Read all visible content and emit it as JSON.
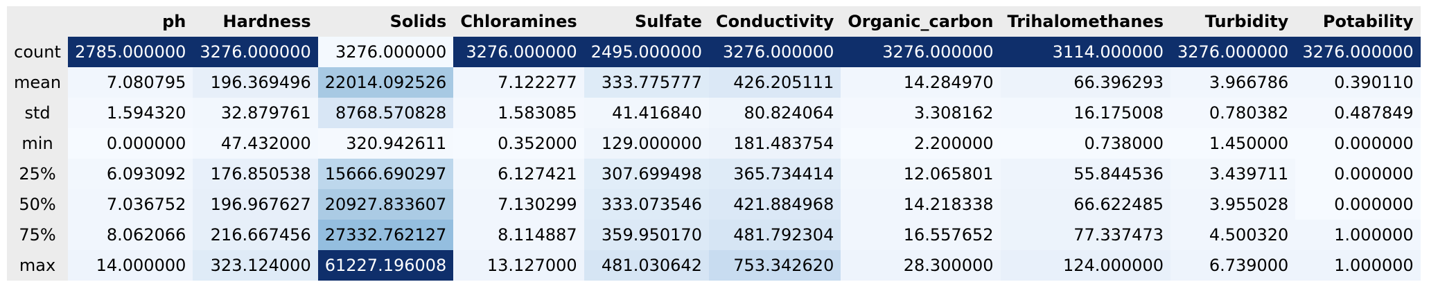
{
  "columns": [
    "",
    "ph",
    "Hardness",
    "Solids",
    "Chloramines",
    "Sulfate",
    "Conductivity",
    "Organic_carbon",
    "Trihalomethanes",
    "Turbidity",
    "Potability"
  ],
  "rows": [
    {
      "label": "count",
      "values": [
        "2785.000000",
        "3276.000000",
        "3276.000000",
        "3276.000000",
        "2495.000000",
        "3276.000000",
        "3276.000000",
        "3114.000000",
        "3276.000000",
        "3276.000000"
      ],
      "colors": [
        "#0f2f6b",
        "#0f2f6b",
        "#f4f9fe",
        "#0f2f6b",
        "#0f2f6b",
        "#0f2f6b",
        "#0f2f6b",
        "#0f2f6b",
        "#0f2f6b",
        "#0f2f6b"
      ],
      "dark": [
        true,
        true,
        false,
        true,
        true,
        true,
        true,
        true,
        true,
        true
      ]
    },
    {
      "label": "mean",
      "values": [
        "7.080795",
        "196.369496",
        "22014.092526",
        "7.122277",
        "333.775777",
        "426.205111",
        "14.284970",
        "66.396293",
        "3.966786",
        "0.390110"
      ],
      "colors": [
        "#f1f6fd",
        "#e7eff9",
        "#a7c9e3",
        "#f1f6fd",
        "#deebf7",
        "#dbe8f6",
        "#f1f6fd",
        "#edf3fb",
        "#f1f6fd",
        "#f1f6fd"
      ],
      "dark": [
        false,
        false,
        false,
        false,
        false,
        false,
        false,
        false,
        false,
        false
      ]
    },
    {
      "label": "std",
      "values": [
        "1.594320",
        "32.879761",
        "8768.570828",
        "1.583085",
        "41.416840",
        "80.824064",
        "3.308162",
        "16.175008",
        "0.780382",
        "0.487849"
      ],
      "colors": [
        "#f4f8fe",
        "#f2f7fd",
        "#d8e6f5",
        "#f4f8fe",
        "#f2f7fd",
        "#eff5fc",
        "#f4f8fe",
        "#f3f8fe",
        "#f4f8fe",
        "#f4f8fe"
      ],
      "dark": [
        false,
        false,
        false,
        false,
        false,
        false,
        false,
        false,
        false,
        false
      ]
    },
    {
      "label": "min",
      "values": [
        "0.000000",
        "47.432000",
        "320.942611",
        "0.352000",
        "129.000000",
        "181.483754",
        "2.200000",
        "0.738000",
        "1.450000",
        "0.000000"
      ],
      "colors": [
        "#f6faff",
        "#f3f8fe",
        "#f5f9fe",
        "#f6faff",
        "#eff5fc",
        "#edf3fb",
        "#f6faff",
        "#f6faff",
        "#f6faff",
        "#f6faff"
      ],
      "dark": [
        false,
        false,
        false,
        false,
        false,
        false,
        false,
        false,
        false,
        false
      ]
    },
    {
      "label": "25%",
      "values": [
        "6.093092",
        "176.850538",
        "15666.690297",
        "6.127421",
        "307.699498",
        "365.734414",
        "12.065801",
        "55.844536",
        "3.439711",
        "0.000000"
      ],
      "colors": [
        "#f2f7fd",
        "#e8f0fa",
        "#bdd7ec",
        "#f2f7fd",
        "#e1edf8",
        "#dfebf7",
        "#f2f7fd",
        "#eef4fc",
        "#f2f7fd",
        "#f6faff"
      ],
      "dark": [
        false,
        false,
        false,
        false,
        false,
        false,
        false,
        false,
        false,
        false
      ]
    },
    {
      "label": "50%",
      "values": [
        "7.036752",
        "196.967627",
        "20927.833607",
        "7.130299",
        "333.073546",
        "421.884968",
        "14.218338",
        "66.622485",
        "3.955028",
        "0.000000"
      ],
      "colors": [
        "#f1f6fd",
        "#e7eff9",
        "#abcbe4",
        "#f1f6fd",
        "#deebf7",
        "#dbe8f6",
        "#f1f6fd",
        "#edf3fb",
        "#f1f6fd",
        "#f6faff"
      ],
      "dark": [
        false,
        false,
        false,
        false,
        false,
        false,
        false,
        false,
        false,
        false
      ]
    },
    {
      "label": "75%",
      "values": [
        "8.062066",
        "216.667456",
        "27332.762127",
        "8.114887",
        "359.950170",
        "481.792304",
        "16.557652",
        "77.337473",
        "4.500320",
        "1.000000"
      ],
      "colors": [
        "#f1f6fd",
        "#e6eff9",
        "#94bedf",
        "#f1f6fd",
        "#dce9f6",
        "#d6e5f4",
        "#f1f6fd",
        "#ecf3fb",
        "#f1f6fd",
        "#f1f6fd"
      ],
      "dark": [
        false,
        false,
        false,
        false,
        false,
        false,
        false,
        false,
        false,
        false
      ]
    },
    {
      "label": "max",
      "values": [
        "14.000000",
        "323.124000",
        "61227.196008",
        "13.127000",
        "481.030642",
        "753.342620",
        "28.300000",
        "124.000000",
        "6.739000",
        "1.000000"
      ],
      "colors": [
        "#eef4fc",
        "#dfebf7",
        "#0f2f6b",
        "#eef4fc",
        "#d6e5f4",
        "#c8dcf0",
        "#eef4fc",
        "#e8f0fa",
        "#eef4fc",
        "#eef4fc"
      ],
      "dark": [
        false,
        false,
        true,
        false,
        false,
        false,
        false,
        false,
        false,
        false
      ]
    }
  ]
}
